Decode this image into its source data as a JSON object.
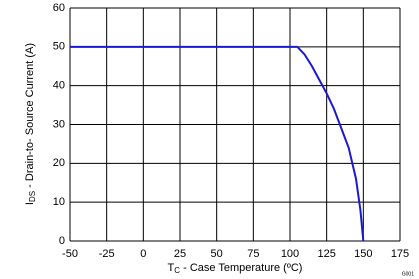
{
  "chart_data": {
    "type": "line",
    "x_label": [
      "T",
      "C",
      " - Case Temperature (ºC)"
    ],
    "y_label": [
      "I",
      "DS",
      " - Drain-to- Source Current (A)"
    ],
    "note": "G001",
    "x": [
      -50,
      105,
      110,
      115,
      120,
      125,
      130,
      135,
      140,
      145,
      148,
      150
    ],
    "series": [
      {
        "color": "#1a1acc",
        "values": [
          50,
          50,
          48,
          45,
          41.5,
          38,
          34,
          29,
          24,
          16,
          8,
          0
        ]
      }
    ],
    "xlim": [
      -50,
      175
    ],
    "xticks": [
      -50,
      -25,
      0,
      25,
      50,
      75,
      100,
      125,
      150,
      175
    ],
    "ylim": [
      0,
      60
    ],
    "yticks": [
      0,
      10,
      20,
      30,
      40,
      50,
      60
    ],
    "grid": true
  }
}
